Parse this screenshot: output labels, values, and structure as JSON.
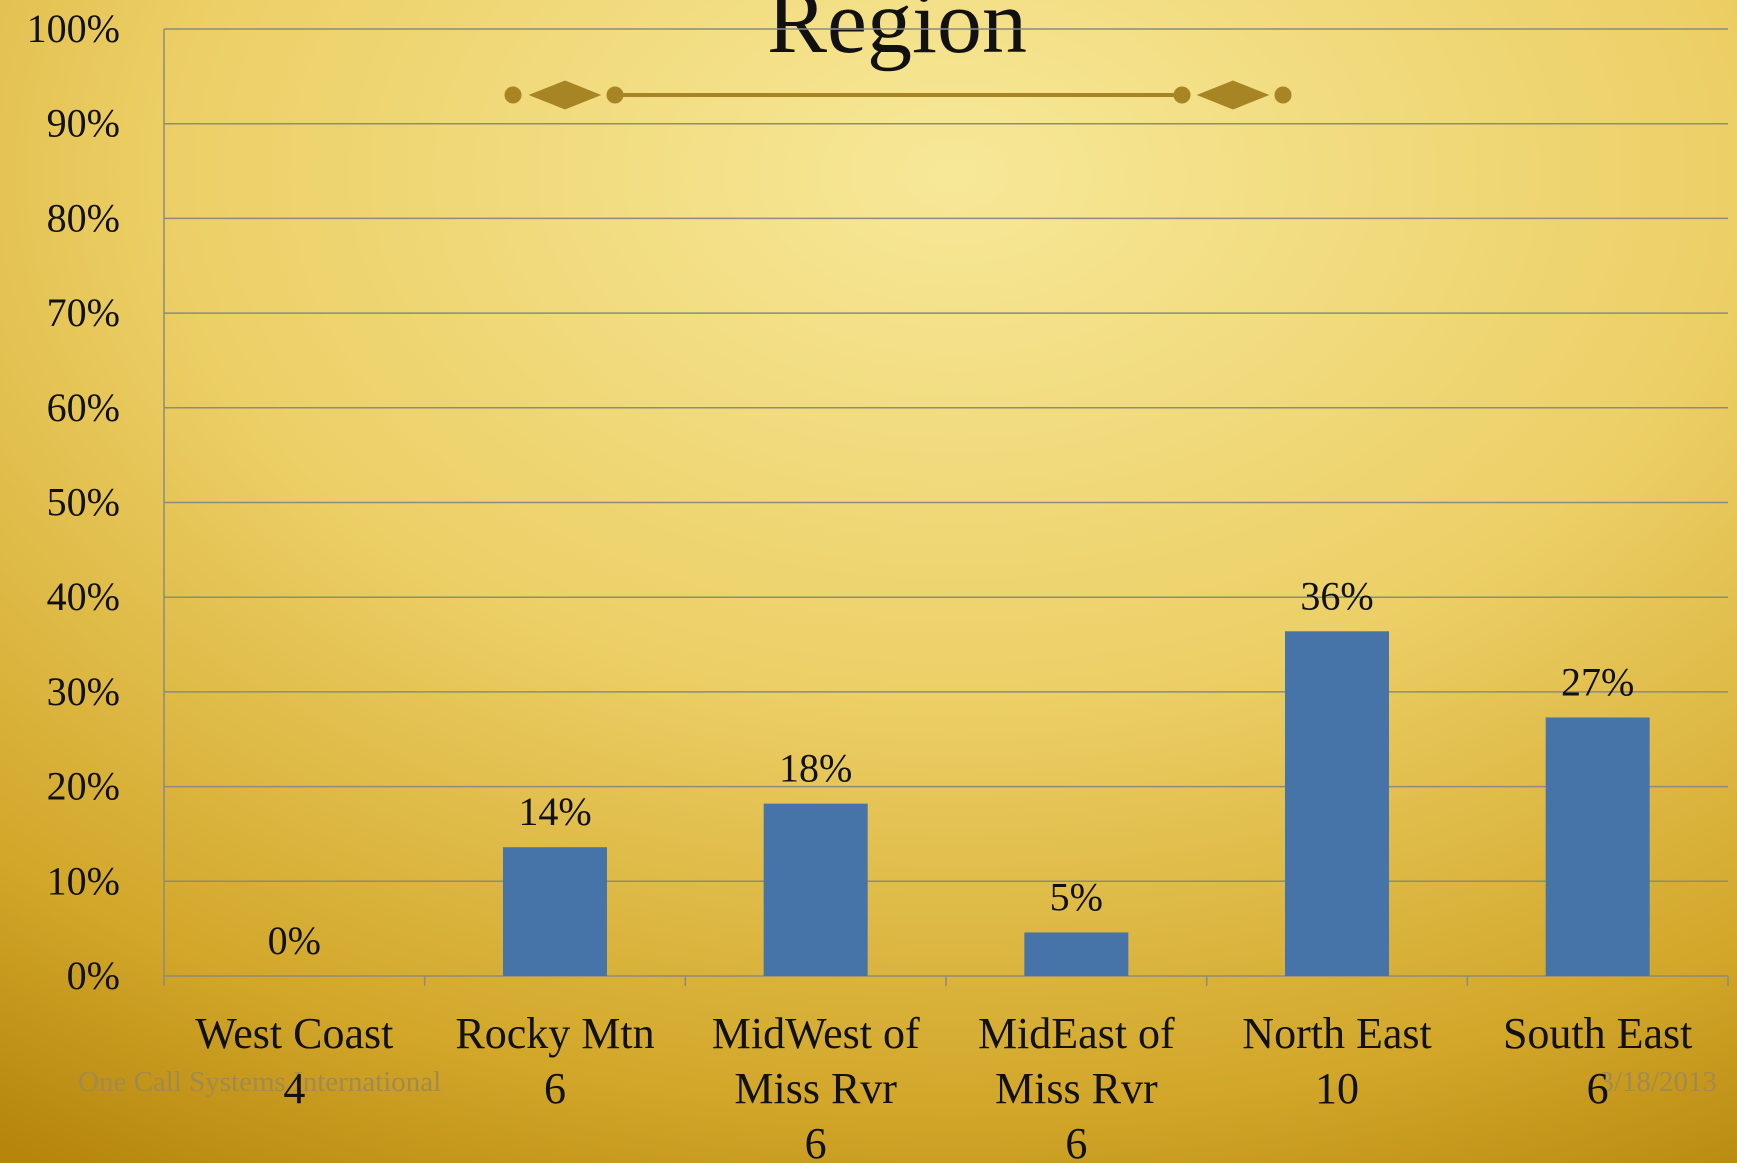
{
  "chart_data": {
    "type": "bar",
    "title": "Region",
    "categories": [
      "West Coast\n4",
      "Rocky Mtn\n6",
      "MidWest of\nMiss Rvr\n6",
      "MidEast of\nMiss Rvr\n6",
      "North East\n10",
      "South East\n6"
    ],
    "values": [
      0,
      13.6,
      18.2,
      4.6,
      36.4,
      27.3
    ],
    "value_labels": [
      "0%",
      "14%",
      "18%",
      "5%",
      "36%",
      "27%"
    ],
    "color": "#4674a8",
    "ylim": [
      0,
      100
    ],
    "yticks": [
      {
        "value": 0,
        "label": "0%"
      },
      {
        "value": 10,
        "label": "10%"
      },
      {
        "value": 20,
        "label": "20%"
      },
      {
        "value": 30,
        "label": "30%"
      },
      {
        "value": 40,
        "label": "40%"
      },
      {
        "value": 50,
        "label": "50%"
      },
      {
        "value": 60,
        "label": "60%"
      },
      {
        "value": 70,
        "label": "70%"
      },
      {
        "value": 80,
        "label": "80%"
      },
      {
        "value": 90,
        "label": "90%"
      },
      {
        "value": 100,
        "label": "100%"
      }
    ],
    "grid": true
  },
  "footer": {
    "left": "One Call Systems International",
    "right": "3/18/2013"
  }
}
